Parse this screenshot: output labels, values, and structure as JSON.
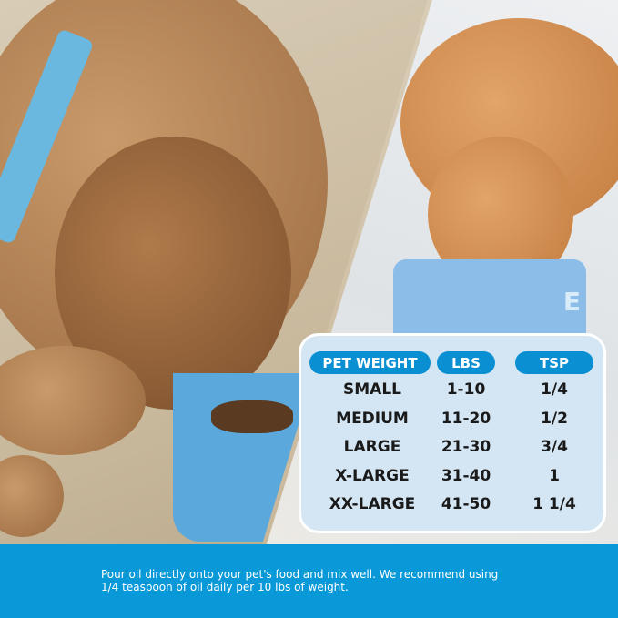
{
  "table": {
    "headers": [
      "PET WEIGHT",
      "LBS",
      "TSP"
    ],
    "rows": [
      [
        "SMALL",
        "1-10",
        "1/4"
      ],
      [
        "MEDIUM",
        "11-20",
        "1/2"
      ],
      [
        "LARGE",
        "21-30",
        "3/4"
      ],
      [
        "X-LARGE",
        "31-40",
        "1"
      ],
      [
        "XX-LARGE",
        "41-50",
        "1 1/4"
      ]
    ]
  },
  "bowl_letter": "E",
  "footer": {
    "line1": "Pour oil directly onto your pet's food and mix well. We recommend using",
    "line2": "1/4 teaspoon of oil daily per 10 lbs of weight."
  },
  "colors": {
    "accent": "#0a99d8",
    "pill": "#0a8fd3",
    "table_bg": "#d4e6f3"
  }
}
